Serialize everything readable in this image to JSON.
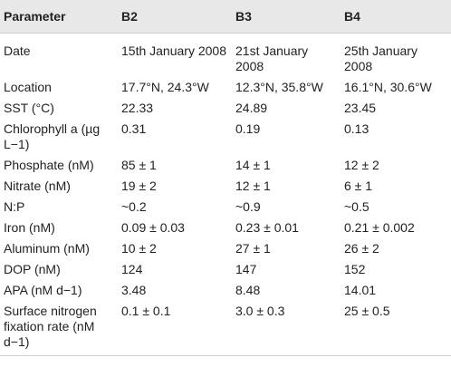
{
  "table": {
    "headers": [
      "Parameter",
      "B2",
      "B3",
      "B4"
    ],
    "rows": [
      [
        "Date",
        "15th January 2008",
        "21st January 2008",
        "25th January 2008"
      ],
      [
        "Location",
        "17.7°N, 24.3°W",
        "12.3°N, 35.8°W",
        "16.1°N, 30.6°W"
      ],
      [
        "SST (°C)",
        "22.33",
        "24.89",
        "23.45"
      ],
      [
        "Chlorophyll a (µg L−1)",
        "0.31",
        "0.19",
        "0.13"
      ],
      [
        "Phosphate (nM)",
        "85 ± 1",
        "14 ± 1",
        "12 ± 2"
      ],
      [
        "Nitrate (nM)",
        "19 ± 2",
        "12 ± 1",
        "6 ± 1"
      ],
      [
        "N:P",
        "~0.2",
        "~0.9",
        "~0.5"
      ],
      [
        "Iron (nM)",
        "0.09 ± 0.03",
        "0.23 ± 0.01",
        "0.21 ± 0.002"
      ],
      [
        "Aluminum (nM)",
        "10 ± 2",
        "27 ± 1",
        "26 ± 2"
      ],
      [
        "DOP (nM)",
        "124",
        "147",
        "152"
      ],
      [
        "APA (nM d−1)",
        "3.48",
        "8.48",
        "14.01"
      ],
      [
        "Surface nitrogen fixation rate (nM d−1)",
        "0.1 ± 0.1",
        "3.0 ± 0.3",
        "25 ± 0.5"
      ]
    ]
  }
}
